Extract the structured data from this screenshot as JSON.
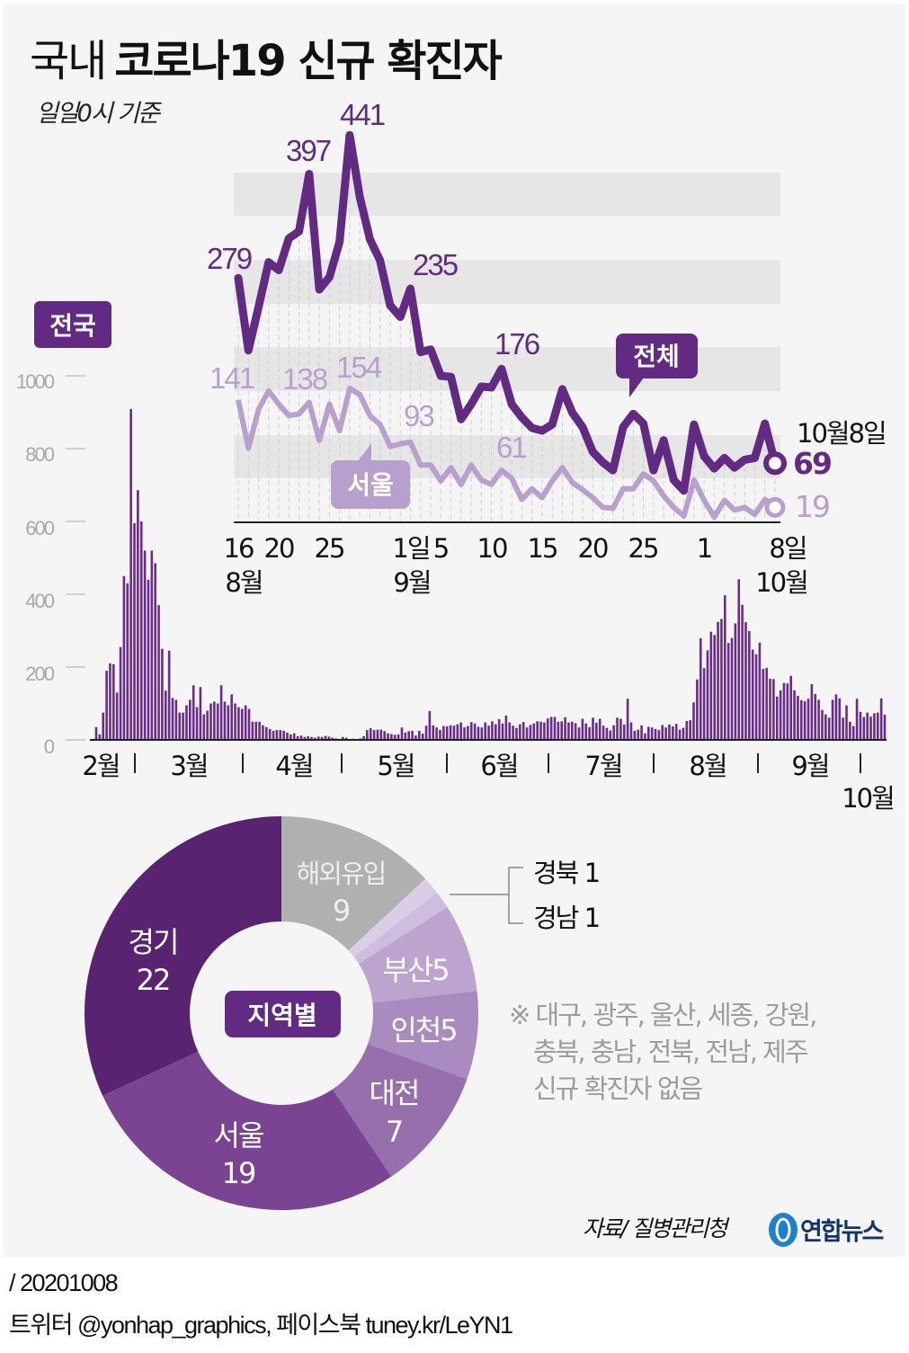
{
  "title": {
    "light": "국내",
    "bold": "코로나19 신규 확진자"
  },
  "subtitle": "일일0시 기준",
  "colors": {
    "total": "#632a84",
    "seoul": "#b8a0ce",
    "bars": "#6a2b8a",
    "band": "#e6e6e6",
    "panel": "#f5f5f5"
  },
  "chart_data": [
    {
      "type": "line",
      "x_tick_labels": [
        "16",
        "20",
        "25",
        "1일",
        "5",
        "10",
        "15",
        "20",
        "25",
        "1",
        "8일"
      ],
      "x_month_labels": [
        "8월",
        "9월",
        "10월"
      ],
      "series": [
        {
          "name": "전체",
          "values": [
            279,
            197,
            246,
            297,
            288,
            324,
            332,
            397,
            266,
            280,
            320,
            441,
            371,
            323,
            299,
            248,
            235,
            267,
            195,
            198,
            168,
            167,
            119,
            136,
            156,
            155,
            176,
            136,
            121,
            109,
            106,
            113,
            153,
            126,
            110,
            82,
            70,
            61,
            110,
            125,
            114,
            61,
            95,
            50,
            38,
            113,
            77,
            63,
            75,
            64,
            73,
            75,
            114,
            69
          ]
        },
        {
          "name": "서울",
          "values": [
            141,
            86,
            130,
            151,
            136,
            123,
            125,
            138,
            95,
            136,
            106,
            154,
            147,
            123,
            113,
            88,
            91,
            93,
            67,
            67,
            49,
            64,
            45,
            67,
            50,
            45,
            61,
            52,
            28,
            40,
            30,
            49,
            64,
            47,
            39,
            30,
            19,
            18,
            40,
            40,
            57,
            49,
            32,
            19,
            9,
            50,
            27,
            8,
            27,
            16,
            19,
            11,
            28,
            19
          ]
        }
      ],
      "annotations": {
        "total": [
          "279",
          "397",
          "441",
          "235",
          "176"
        ],
        "seoul": [
          "141",
          "138",
          "154",
          "93",
          "61"
        ],
        "end_date": "10월8일",
        "end_total": "69",
        "end_seoul": "19"
      },
      "callouts": {
        "total": "전체",
        "seoul": "서울"
      }
    },
    {
      "type": "bar",
      "label": "전국",
      "y_tick_labels": [
        "1000",
        "800",
        "600",
        "400",
        "200",
        "0"
      ],
      "ylim": [
        0,
        1000
      ],
      "x_month_labels": [
        "2월",
        "3월",
        "4월",
        "5월",
        "6월",
        "7월",
        "8월",
        "9월",
        "10월"
      ],
      "values": [
        35,
        15,
        75,
        190,
        210,
        208,
        130,
        255,
        450,
        430,
        909,
        595,
        686,
        600,
        520,
        440,
        520,
        485,
        370,
        250,
        135,
        245,
        115,
        110,
        75,
        75,
        95,
        110,
        150,
        90,
        145,
        70,
        80,
        100,
        105,
        100,
        150,
        105,
        95,
        125,
        100,
        90,
        85,
        95,
        85,
        50,
        50,
        50,
        40,
        35,
        30,
        25,
        27,
        27,
        25,
        20,
        15,
        18,
        10,
        12,
        8,
        10,
        8,
        6,
        9,
        8,
        11,
        9,
        6,
        4,
        3,
        8,
        6,
        2,
        3,
        2,
        4,
        10,
        27,
        32,
        27,
        28,
        28,
        24,
        18,
        16,
        14,
        15,
        34,
        20,
        24,
        25,
        12,
        25,
        17,
        39,
        79,
        40,
        34,
        27,
        38,
        37,
        40,
        39,
        43,
        48,
        34,
        38,
        49,
        45,
        36,
        34,
        48,
        39,
        51,
        43,
        57,
        45,
        67,
        48,
        39,
        33,
        43,
        49,
        34,
        41,
        45,
        51,
        50,
        48,
        59,
        63,
        63,
        50,
        51,
        62,
        48,
        50,
        46,
        34,
        58,
        45,
        35,
        61,
        47,
        58,
        39,
        33,
        26,
        40,
        61,
        58,
        42,
        113,
        48,
        25,
        28,
        40,
        18,
        36,
        34,
        30,
        27,
        41,
        34,
        42,
        37,
        44,
        28,
        33,
        52,
        54,
        103,
        166,
        279,
        197,
        246,
        297,
        288,
        324,
        332,
        397,
        266,
        280,
        320,
        441,
        371,
        323,
        299,
        248,
        235,
        267,
        195,
        198,
        168,
        167,
        119,
        136,
        156,
        155,
        176,
        136,
        121,
        109,
        106,
        113,
        153,
        126,
        110,
        82,
        70,
        61,
        110,
        125,
        114,
        61,
        95,
        50,
        38,
        113,
        77,
        63,
        75,
        64,
        73,
        75,
        114,
        69
      ]
    },
    {
      "type": "pie",
      "label": "지역별",
      "slices": [
        {
          "name": "해외유입",
          "value": 9,
          "color": "#b1b0b1"
        },
        {
          "name": "경북",
          "value": 1,
          "color": "#dccde6"
        },
        {
          "name": "경남",
          "value": 1,
          "color": "#cebddf"
        },
        {
          "name": "부산",
          "value": 5,
          "color": "#bca4cf"
        },
        {
          "name": "인천",
          "value": 5,
          "color": "#a98bc0"
        },
        {
          "name": "대전",
          "value": 7,
          "color": "#966fac"
        },
        {
          "name": "서울",
          "value": 19,
          "color": "#7a4493"
        },
        {
          "name": "경기",
          "value": 22,
          "color": "#5a2372"
        }
      ],
      "slice_labels": [
        "해외유입",
        "9",
        "부산5",
        "인천5",
        "대전",
        "7",
        "서울",
        "19",
        "경기",
        "22",
        "경북 1",
        "경남 1"
      ]
    }
  ],
  "note": [
    "※ 대구, 광주, 울산, 세종, 강원,",
    "충북, 충남, 전북, 전남, 제주",
    "신규 확진자 없음"
  ],
  "source": "자료/ 질병관리청",
  "logo": "연합뉴스",
  "footer": {
    "date": "/ 20201008",
    "social": "트위터 @yonhap_graphics, 페이스북 tuney.kr/LeYN1"
  }
}
